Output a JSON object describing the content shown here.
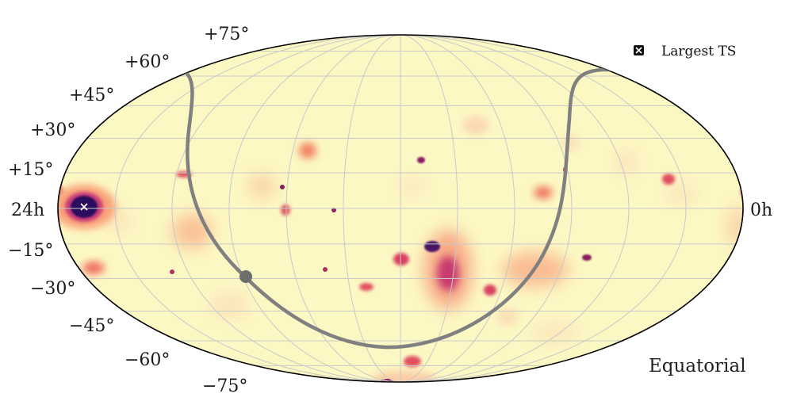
{
  "map": {
    "projection": "Mollweide",
    "frame": "Equatorial",
    "background_color": "#fcf8c4",
    "grid_color": "#c8c8c8",
    "outline_color": "#000000",
    "track_color": "#808080"
  },
  "legend": {
    "label": "Largest TS",
    "marker_icon": "boxed-x-icon"
  },
  "labels": {
    "ra_left": "24h",
    "ra_right": "0h",
    "dec": [
      "+75°",
      "+60°",
      "+45°",
      "+30°",
      "+15°",
      "−15°",
      "−30°",
      "−45°",
      "−60°",
      "−75°"
    ]
  },
  "colors": {
    "hot_spot": "#2a0a5c",
    "hot_mid": "#b5367a",
    "warm": "#f08060",
    "faint": "#f9c7a0"
  }
}
